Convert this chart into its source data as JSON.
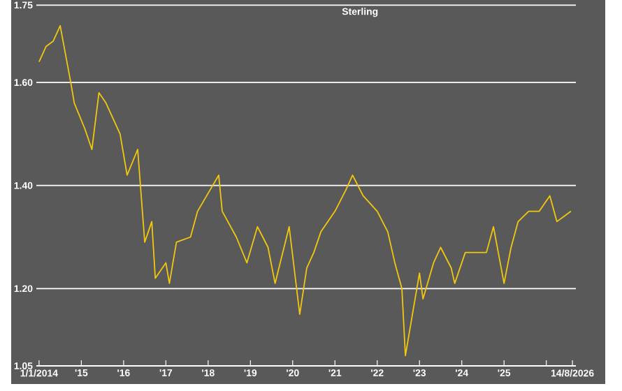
{
  "chart_data": {
    "type": "line",
    "title": "Sterling",
    "x": [
      "2014-01",
      "2014-03",
      "2014-05",
      "2014-07",
      "2014-10",
      "2014-11",
      "2015-02",
      "2015-04",
      "2015-06",
      "2015-08",
      "2015-12",
      "2016-02",
      "2016-05",
      "2016-07",
      "2016-09",
      "2016-10",
      "2017-01",
      "2017-02",
      "2017-04",
      "2017-08",
      "2017-10",
      "2018-04",
      "2018-05",
      "2018-09",
      "2018-12",
      "2019-03",
      "2019-06",
      "2019-08",
      "2019-12",
      "2020-03",
      "2020-05",
      "2020-07",
      "2020-09",
      "2021-01",
      "2021-04",
      "2021-06",
      "2021-09",
      "2022-01",
      "2022-04",
      "2022-06",
      "2022-08",
      "2022-09",
      "2022-11",
      "2023-01",
      "2023-02",
      "2023-05",
      "2023-07",
      "2023-10",
      "2023-11",
      "2024-02",
      "2024-05",
      "2024-08",
      "2024-10",
      "2025-01",
      "2025-03",
      "2025-05",
      "2025-08",
      "2025-11",
      "2026-02",
      "2026-04",
      "2026-06",
      "2026-08"
    ],
    "series": [
      {
        "color": "#f2c80f",
        "values": [
          1.64,
          1.67,
          1.68,
          1.71,
          1.6,
          1.56,
          1.51,
          1.47,
          1.58,
          1.56,
          1.5,
          1.42,
          1.47,
          1.29,
          1.33,
          1.22,
          1.25,
          1.21,
          1.29,
          1.3,
          1.35,
          1.42,
          1.35,
          1.3,
          1.25,
          1.32,
          1.28,
          1.21,
          1.32,
          1.15,
          1.24,
          1.27,
          1.31,
          1.35,
          1.39,
          1.42,
          1.38,
          1.35,
          1.31,
          1.25,
          1.2,
          1.07,
          1.15,
          1.23,
          1.18,
          1.25,
          1.28,
          1.24,
          1.21,
          1.27,
          1.27,
          1.27,
          1.32,
          1.21,
          1.28,
          1.33,
          1.35,
          1.35,
          1.38,
          1.33,
          1.34,
          1.35
        ]
      }
    ],
    "xlim": [
      "2013-12-08",
      "2026-09-13"
    ],
    "xticks": [
      {
        "value": "2014-01-01",
        "label": "1/1/2014"
      },
      {
        "value": "2015-01-01",
        "label": "'15"
      },
      {
        "value": "2016-01-01",
        "label": "'16"
      },
      {
        "value": "2017-01-01",
        "label": "'17"
      },
      {
        "value": "2018-01-01",
        "label": "'18"
      },
      {
        "value": "2019-01-01",
        "label": "'19"
      },
      {
        "value": "2020-01-01",
        "label": "'20"
      },
      {
        "value": "2021-01-01",
        "label": "'21"
      },
      {
        "value": "2022-01-01",
        "label": "'22"
      },
      {
        "value": "2023-01-01",
        "label": "'23"
      },
      {
        "value": "2024-01-01",
        "label": "'24"
      },
      {
        "value": "2025-01-01",
        "label": "'25"
      },
      {
        "value": "2026-01-01",
        "label": null
      },
      {
        "value": "2026-08-14",
        "label": "14/8/2026"
      }
    ],
    "ylim": [
      1.05,
      1.76
    ],
    "yticks": [
      1.05,
      {
        "value": 1.2,
        "label": "1.20"
      },
      {
        "value": 1.4,
        "label": "1.40"
      },
      {
        "value": 1.6,
        "label": "1.60"
      },
      1.75
    ],
    "grid": "y"
  }
}
